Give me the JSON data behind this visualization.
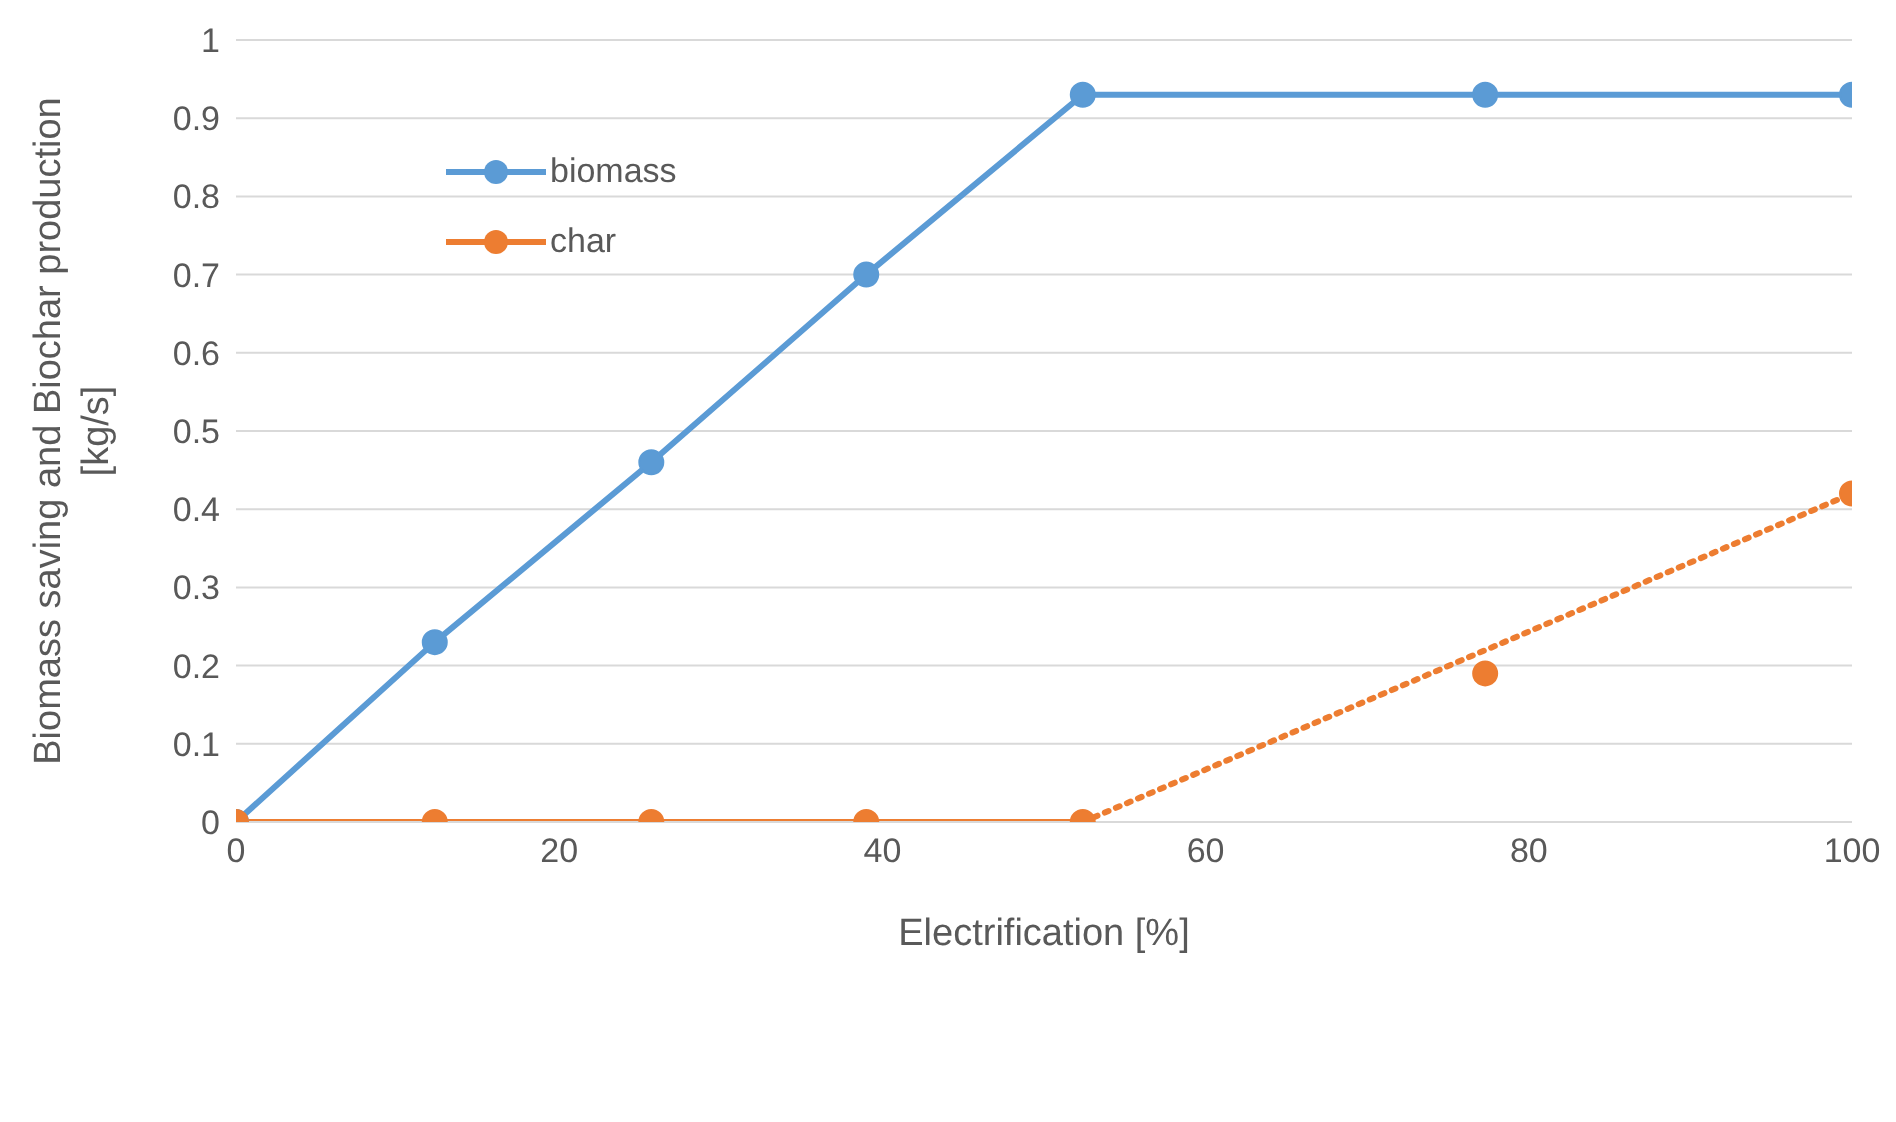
{
  "chart_data": {
    "type": "line",
    "xlabel": "Electrification [%]",
    "ylabel": "Biomass saving and Biochar production\n[kg/s]",
    "xlim": [
      0,
      100
    ],
    "xticks": [
      0,
      20,
      40,
      60,
      80,
      100
    ],
    "ylim": [
      0,
      1
    ],
    "yticks": [
      0,
      0.1,
      0.2,
      0.3,
      0.4,
      0.5,
      0.6,
      0.7,
      0.8,
      0.9,
      1
    ],
    "grid": "y",
    "legend": "top left",
    "marker": "circle",
    "line_style": "solid",
    "series": [
      {
        "name": "biomass",
        "color": "#5b9bd5",
        "x": [
          0,
          12.3,
          25.7,
          39,
          52.4,
          77.3,
          100
        ],
        "values": [
          0,
          0.23,
          0.46,
          0.7,
          0.93,
          0.93,
          0.93
        ]
      },
      {
        "name": "char",
        "color": "#ed7d31",
        "x": [
          0,
          12.3,
          25.7,
          39,
          52.4
        ],
        "values": [
          0,
          0,
          0,
          0,
          0
        ]
      },
      {
        "type": "scatter",
        "color": "#ed7d31",
        "x": [
          77.3,
          100
        ],
        "values": [
          0.19,
          0.42
        ]
      },
      {
        "type": "line",
        "color": "#ed7d31",
        "marker": "none",
        "line_style": "dotted",
        "x": [
          52.4,
          100
        ],
        "values": [
          0,
          0.42
        ]
      }
    ]
  }
}
